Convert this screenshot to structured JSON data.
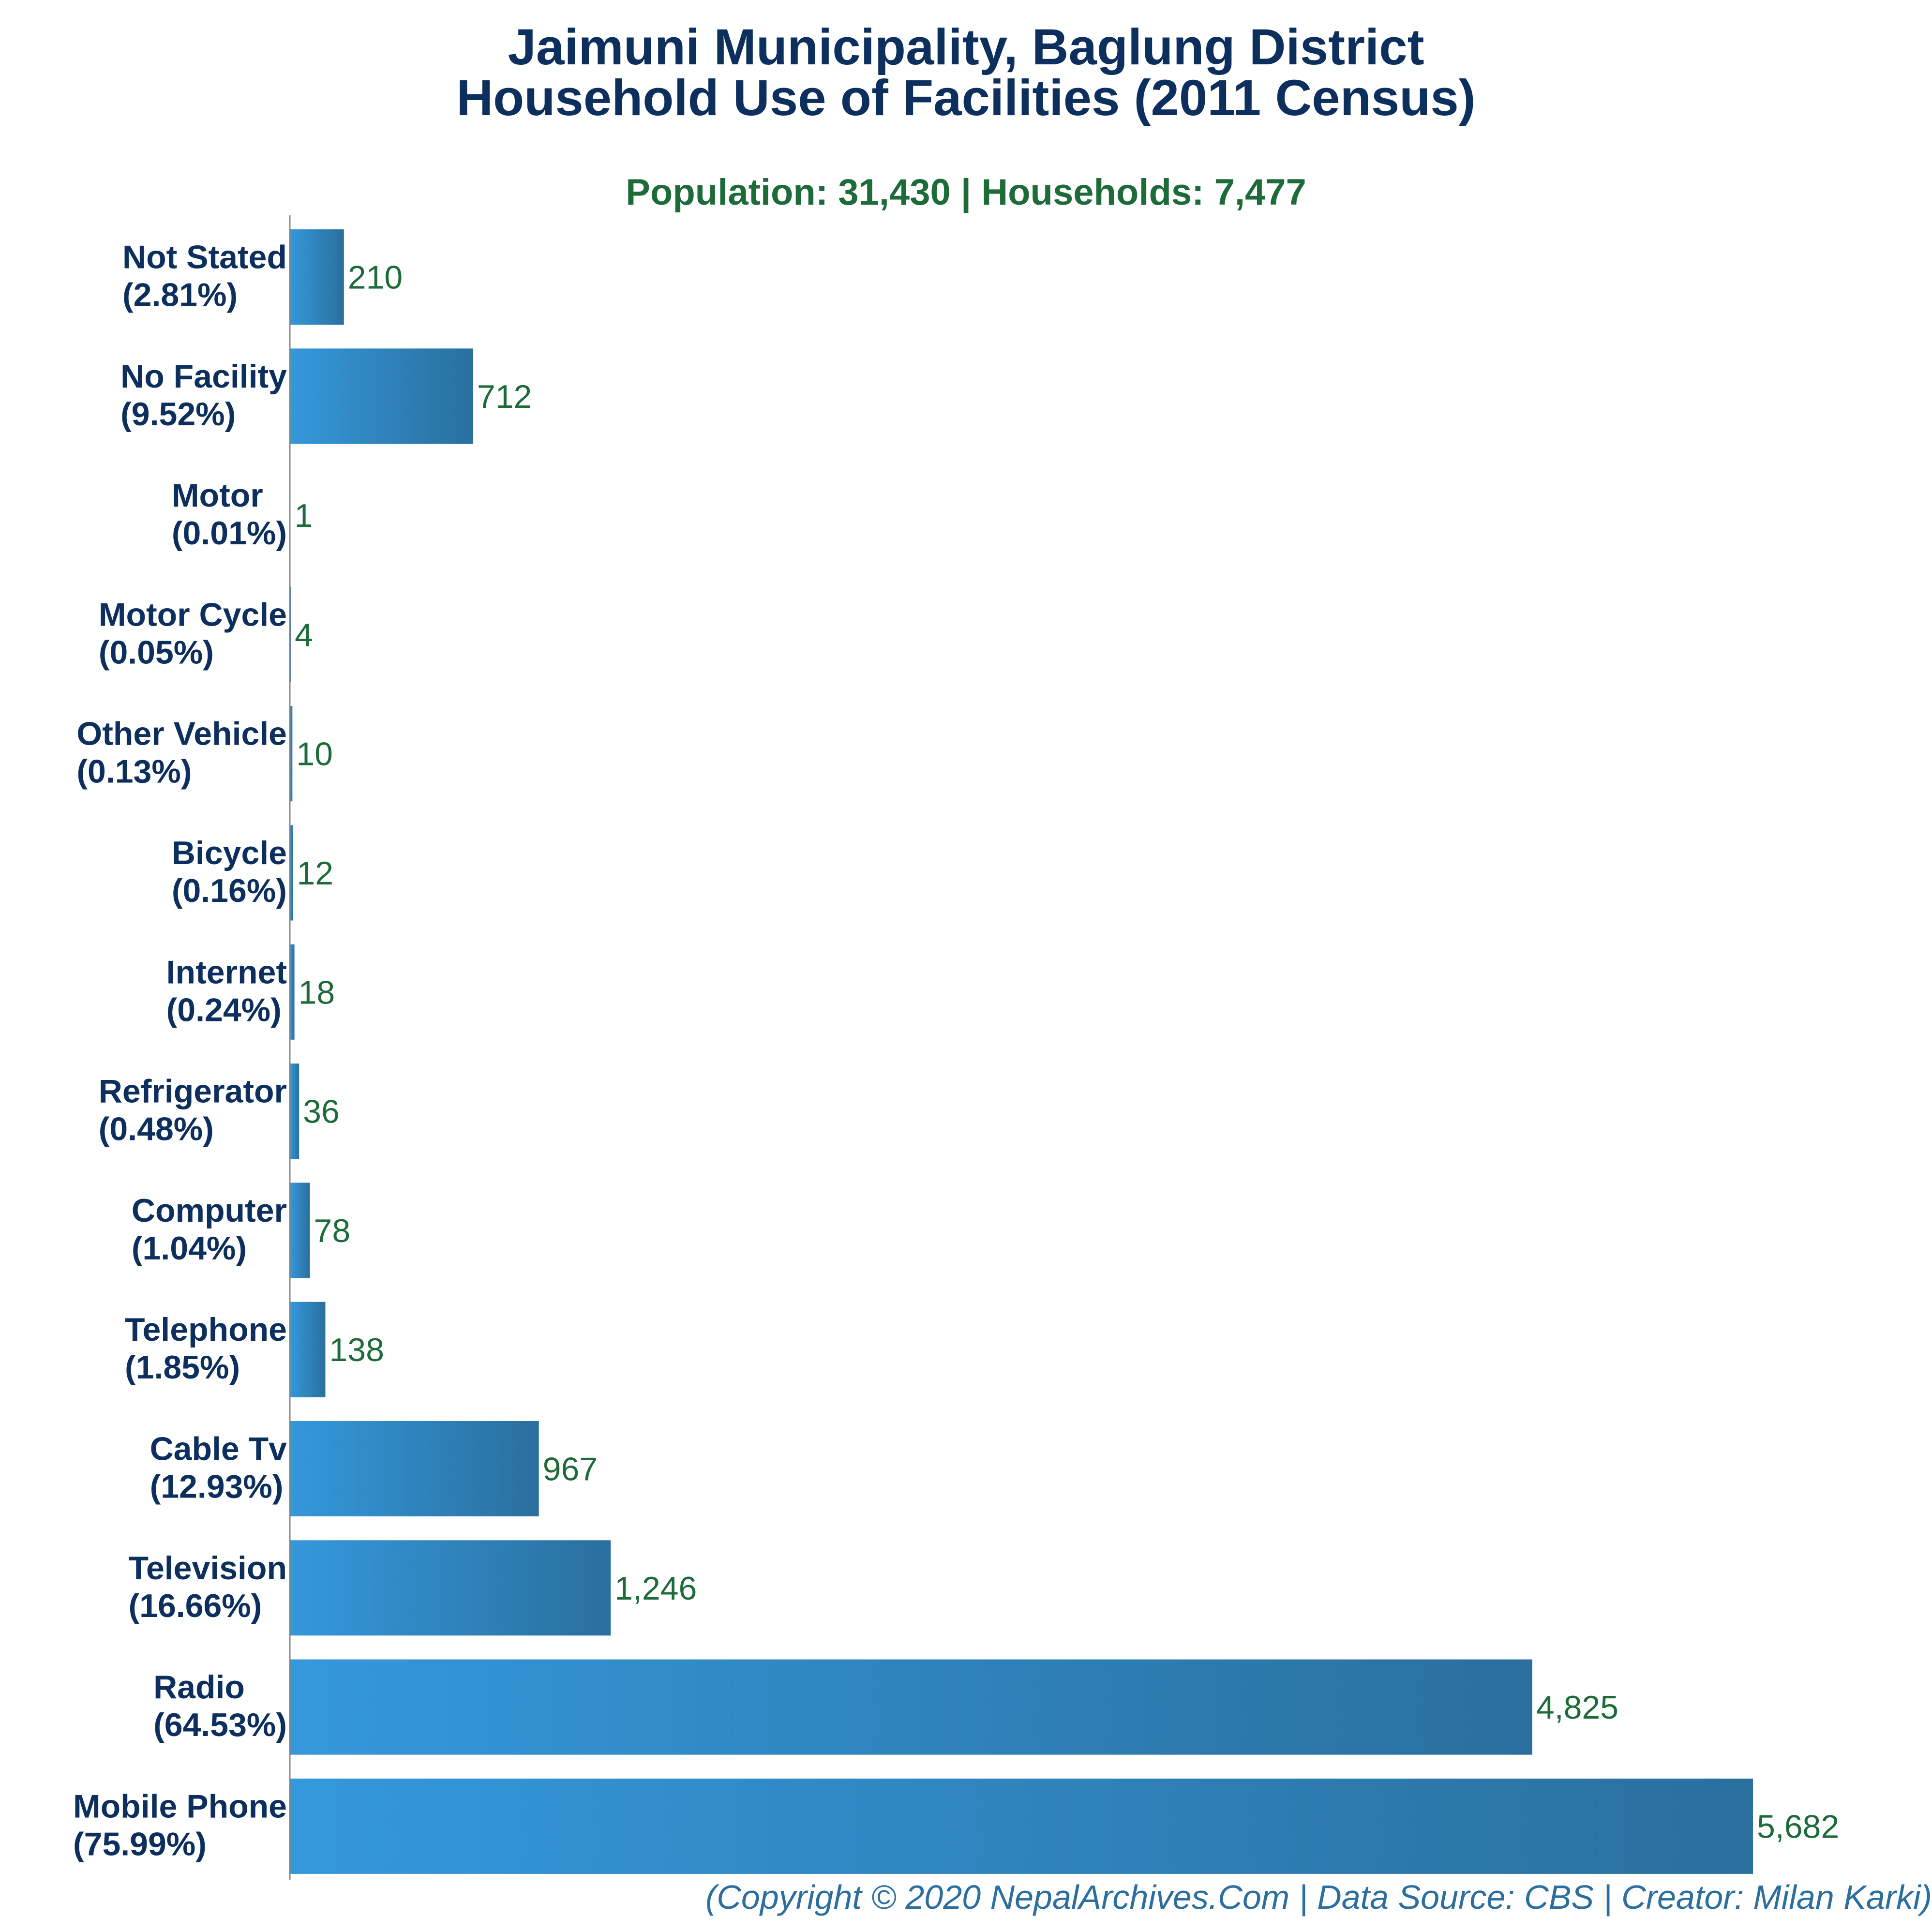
{
  "chart_data": {
    "type": "bar",
    "orientation": "horizontal",
    "title": [
      "Jaimuni Municipality, Baglung District",
      "Household Use of Facilities (2011 Census)"
    ],
    "subtitle": "Population: 31,430 | Households: 7,477",
    "categories": [
      "Not Stated",
      "No Facility",
      "Motor",
      "Motor Cycle",
      "Other Vehicle",
      "Bicycle",
      "Internet",
      "Refrigerator",
      "Computer",
      "Telephone",
      "Cable Tv",
      "Television",
      "Radio",
      "Mobile Phone"
    ],
    "percent_labels": [
      "(2.81%)",
      "(9.52%)",
      "(0.01%)",
      "(0.05%)",
      "(0.13%)",
      "(0.16%)",
      "(0.24%)",
      "(0.48%)",
      "(1.04%)",
      "(1.85%)",
      "(12.93%)",
      "(16.66%)",
      "(64.53%)",
      "(75.99%)"
    ],
    "values": [
      210,
      712,
      1,
      4,
      10,
      12,
      18,
      36,
      78,
      138,
      967,
      1246,
      4825,
      5682
    ],
    "value_labels": [
      "210",
      "712",
      "1",
      "4",
      "10",
      "12",
      "18",
      "36",
      "78",
      "138",
      "967",
      "1,246",
      "4,825",
      "5,682"
    ],
    "xlim": [
      0,
      5682
    ],
    "grid": false,
    "legend": "none",
    "colors": {
      "bar_start": "#3498db",
      "bar_end": "#2a6f9e",
      "axis": "#888888",
      "category_text": "#0d2f5e",
      "value_text": "#1e6b3a",
      "title_text": "#0d2f5e",
      "subtitle_text": "#1e6b3a",
      "footer_text": "#2c6e9e"
    }
  },
  "footer": "(Copyright © 2020 NepalArchives.Com | Data Source: CBS | Creator: Milan Karki)"
}
